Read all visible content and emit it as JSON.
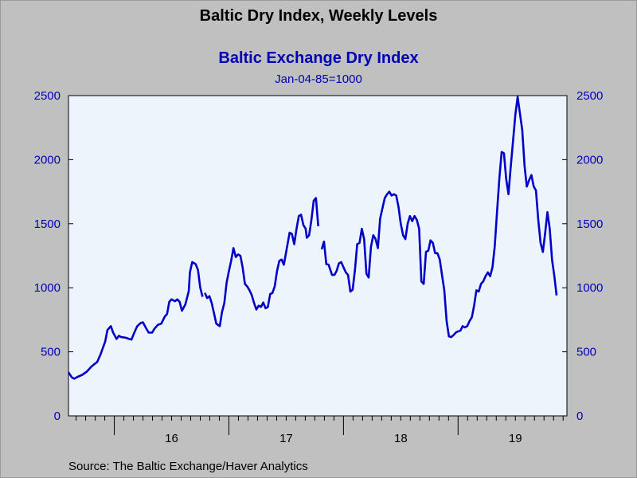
{
  "title": "Baltic Dry Index, Weekly Levels",
  "source": "Source:  The Baltic Exchange/Haver Analytics",
  "colors": {
    "line": "#0000c8",
    "plot_bg": "#eef4fc",
    "page_bg": "#c0c0c0",
    "text_blue": "#0000b4"
  },
  "chart_data": {
    "type": "line",
    "title": "Baltic Exchange Dry Index",
    "subtitle": "Jan-04-85=1000",
    "xlabel": "",
    "ylabel": "",
    "ylim": [
      0,
      2500
    ],
    "yticks": [
      0,
      500,
      1000,
      1500,
      2000,
      2500
    ],
    "right_axis": true,
    "grid": false,
    "x_unit": "year",
    "xlim": [
      2015.6,
      2019.95
    ],
    "x_tick_labels": [
      {
        "label": "16",
        "x": 2016.5
      },
      {
        "label": "17",
        "x": 2017.5
      },
      {
        "label": "18",
        "x": 2018.5
      },
      {
        "label": "19",
        "x": 2019.5
      }
    ],
    "series": [
      {
        "segments": [
          [
            [
              2015.6,
              340
            ],
            [
              2015.63,
              300
            ],
            [
              2015.65,
              290
            ],
            [
              2015.68,
              305
            ],
            [
              2015.72,
              320
            ],
            [
              2015.76,
              345
            ],
            [
              2015.8,
              385
            ],
            [
              2015.82,
              400
            ],
            [
              2015.85,
              420
            ],
            [
              2015.88,
              480
            ],
            [
              2015.92,
              580
            ],
            [
              2015.94,
              670
            ],
            [
              2015.97,
              700
            ],
            [
              2015.99,
              650
            ],
            [
              2016.02,
              600
            ],
            [
              2016.04,
              625
            ],
            [
              2016.06,
              615
            ],
            [
              2016.1,
              610
            ],
            [
              2016.13,
              600
            ],
            [
              2016.15,
              595
            ],
            [
              2016.17,
              640
            ],
            [
              2016.2,
              700
            ],
            [
              2016.23,
              725
            ],
            [
              2016.25,
              730
            ],
            [
              2016.28,
              680
            ],
            [
              2016.3,
              650
            ],
            [
              2016.33,
              650
            ],
            [
              2016.35,
              680
            ],
            [
              2016.38,
              710
            ],
            [
              2016.41,
              720
            ],
            [
              2016.44,
              775
            ],
            [
              2016.46,
              795
            ],
            [
              2016.48,
              890
            ],
            [
              2016.5,
              910
            ],
            [
              2016.53,
              895
            ],
            [
              2016.55,
              910
            ],
            [
              2016.57,
              890
            ],
            [
              2016.59,
              820
            ],
            [
              2016.62,
              870
            ],
            [
              2016.65,
              975
            ],
            [
              2016.66,
              1120
            ],
            [
              2016.68,
              1200
            ],
            [
              2016.71,
              1185
            ],
            [
              2016.73,
              1140
            ],
            [
              2016.75,
              1000
            ],
            [
              2016.77,
              930
            ]
          ],
          [
            [
              2016.79,
              960
            ],
            [
              2016.81,
              920
            ],
            [
              2016.83,
              935
            ],
            [
              2016.85,
              880
            ],
            [
              2016.87,
              800
            ],
            [
              2016.89,
              720
            ],
            [
              2016.92,
              700
            ],
            [
              2016.94,
              810
            ],
            [
              2016.96,
              880
            ],
            [
              2016.98,
              1040
            ],
            [
              2017.0,
              1130
            ],
            [
              2017.02,
              1210
            ],
            [
              2017.04,
              1310
            ],
            [
              2017.06,
              1240
            ],
            [
              2017.08,
              1260
            ],
            [
              2017.1,
              1250
            ],
            [
              2017.12,
              1160
            ],
            [
              2017.14,
              1030
            ],
            [
              2017.16,
              1010
            ],
            [
              2017.18,
              980
            ],
            [
              2017.2,
              940
            ],
            [
              2017.22,
              880
            ],
            [
              2017.24,
              830
            ],
            [
              2017.26,
              860
            ],
            [
              2017.28,
              850
            ],
            [
              2017.3,
              885
            ],
            [
              2017.32,
              840
            ],
            [
              2017.34,
              850
            ],
            [
              2017.36,
              950
            ],
            [
              2017.38,
              960
            ],
            [
              2017.4,
              1010
            ],
            [
              2017.42,
              1130
            ],
            [
              2017.44,
              1210
            ],
            [
              2017.46,
              1220
            ],
            [
              2017.48,
              1180
            ],
            [
              2017.5,
              1280
            ],
            [
              2017.53,
              1430
            ],
            [
              2017.55,
              1420
            ],
            [
              2017.57,
              1340
            ],
            [
              2017.59,
              1460
            ],
            [
              2017.61,
              1560
            ],
            [
              2017.63,
              1570
            ],
            [
              2017.65,
              1490
            ],
            [
              2017.67,
              1460
            ],
            [
              2017.68,
              1390
            ],
            [
              2017.7,
              1410
            ],
            [
              2017.72,
              1530
            ],
            [
              2017.74,
              1680
            ],
            [
              2017.76,
              1700
            ],
            [
              2017.78,
              1480
            ]
          ],
          [
            [
              2017.81,
              1300
            ],
            [
              2017.83,
              1360
            ],
            [
              2017.85,
              1185
            ],
            [
              2017.87,
              1180
            ],
            [
              2017.9,
              1100
            ],
            [
              2017.92,
              1100
            ],
            [
              2017.94,
              1130
            ],
            [
              2017.96,
              1190
            ],
            [
              2017.98,
              1200
            ],
            [
              2018.0,
              1160
            ],
            [
              2018.02,
              1120
            ],
            [
              2018.04,
              1100
            ],
            [
              2018.06,
              970
            ],
            [
              2018.08,
              985
            ],
            [
              2018.1,
              1140
            ],
            [
              2018.12,
              1340
            ],
            [
              2018.14,
              1350
            ],
            [
              2018.16,
              1460
            ],
            [
              2018.18,
              1380
            ],
            [
              2018.2,
              1110
            ],
            [
              2018.22,
              1080
            ],
            [
              2018.24,
              1320
            ],
            [
              2018.26,
              1410
            ],
            [
              2018.28,
              1380
            ],
            [
              2018.3,
              1310
            ],
            [
              2018.32,
              1540
            ],
            [
              2018.34,
              1620
            ],
            [
              2018.36,
              1700
            ],
            [
              2018.38,
              1730
            ],
            [
              2018.4,
              1750
            ],
            [
              2018.42,
              1720
            ],
            [
              2018.44,
              1730
            ],
            [
              2018.46,
              1720
            ],
            [
              2018.48,
              1630
            ],
            [
              2018.5,
              1500
            ],
            [
              2018.52,
              1410
            ],
            [
              2018.54,
              1380
            ],
            [
              2018.56,
              1500
            ],
            [
              2018.58,
              1560
            ],
            [
              2018.6,
              1520
            ],
            [
              2018.62,
              1560
            ],
            [
              2018.64,
              1530
            ],
            [
              2018.66,
              1460
            ],
            [
              2018.68,
              1050
            ],
            [
              2018.7,
              1030
            ],
            [
              2018.72,
              1280
            ],
            [
              2018.74,
              1290
            ],
            [
              2018.76,
              1370
            ],
            [
              2018.78,
              1350
            ],
            [
              2018.8,
              1270
            ],
            [
              2018.82,
              1270
            ],
            [
              2018.84,
              1220
            ],
            [
              2018.86,
              1100
            ],
            [
              2018.88,
              980
            ],
            [
              2018.9,
              740
            ],
            [
              2018.92,
              620
            ],
            [
              2018.94,
              615
            ],
            [
              2018.96,
              630
            ],
            [
              2018.98,
              650
            ],
            [
              2019.0,
              660
            ],
            [
              2019.02,
              665
            ],
            [
              2019.04,
              700
            ],
            [
              2019.06,
              690
            ],
            [
              2019.08,
              700
            ],
            [
              2019.1,
              740
            ],
            [
              2019.12,
              770
            ],
            [
              2019.14,
              860
            ],
            [
              2019.16,
              980
            ],
            [
              2019.18,
              970
            ],
            [
              2019.2,
              1030
            ],
            [
              2019.22,
              1050
            ],
            [
              2019.24,
              1090
            ],
            [
              2019.26,
              1120
            ],
            [
              2019.28,
              1090
            ],
            [
              2019.3,
              1160
            ],
            [
              2019.32,
              1320
            ],
            [
              2019.34,
              1590
            ],
            [
              2019.36,
              1850
            ],
            [
              2019.38,
              2060
            ],
            [
              2019.4,
              2050
            ],
            [
              2019.42,
              1850
            ],
            [
              2019.44,
              1730
            ],
            [
              2019.46,
              1950
            ],
            [
              2019.48,
              2150
            ],
            [
              2019.5,
              2350
            ],
            [
              2019.52,
              2490
            ],
            [
              2019.54,
              2360
            ],
            [
              2019.56,
              2230
            ],
            [
              2019.58,
              1950
            ],
            [
              2019.6,
              1790
            ],
            [
              2019.62,
              1840
            ],
            [
              2019.64,
              1880
            ],
            [
              2019.66,
              1790
            ],
            [
              2019.68,
              1760
            ],
            [
              2019.7,
              1530
            ],
            [
              2019.72,
              1350
            ],
            [
              2019.74,
              1280
            ],
            [
              2019.76,
              1430
            ],
            [
              2019.78,
              1590
            ],
            [
              2019.8,
              1460
            ],
            [
              2019.82,
              1220
            ],
            [
              2019.84,
              1090
            ],
            [
              2019.86,
              940
            ]
          ]
        ]
      }
    ]
  }
}
